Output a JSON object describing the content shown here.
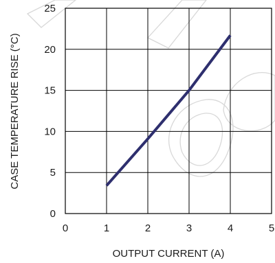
{
  "chart_data": {
    "type": "line",
    "xlabel": "OUTPUT CURRENT (A)",
    "ylabel": "CASE TEMPERATURE RISE (°C)",
    "xlim": [
      0,
      5
    ],
    "ylim": [
      0,
      25
    ],
    "x_ticks": [
      "0",
      "1",
      "2",
      "3",
      "4",
      "5"
    ],
    "y_ticks": [
      "0",
      "5",
      "10",
      "15",
      "20",
      "25"
    ],
    "grid": true,
    "series": [
      {
        "color": "#2e2f6e",
        "x": [
          1,
          2,
          3,
          4
        ],
        "y": [
          3.4,
          9.1,
          15.0,
          21.7
        ]
      }
    ]
  }
}
